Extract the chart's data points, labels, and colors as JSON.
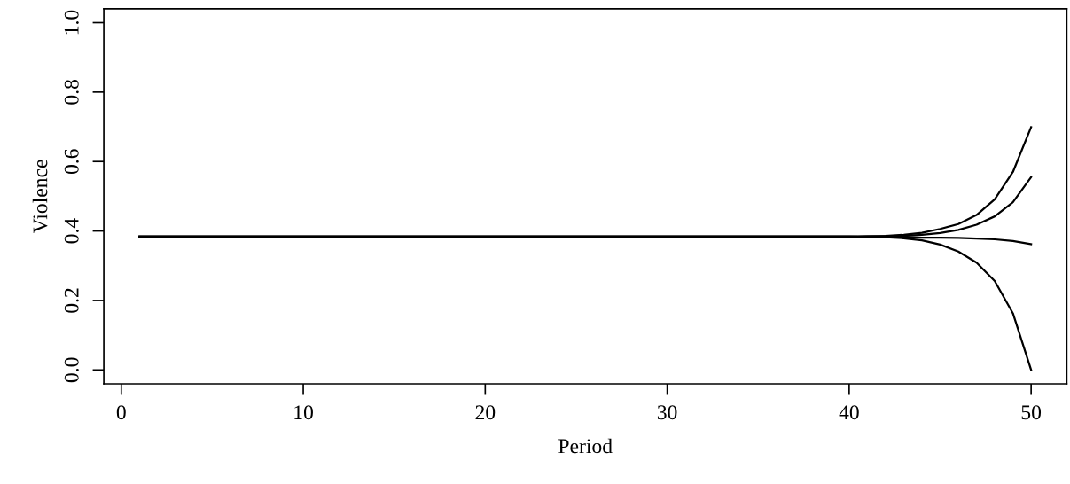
{
  "chart_data": {
    "type": "line",
    "xlabel": "Period",
    "ylabel": "Violence",
    "x": [
      1,
      40,
      41,
      42,
      43,
      44,
      45,
      46,
      47,
      48,
      49,
      50
    ],
    "series": [
      {
        "color": "#000000",
        "values": [
          0.384,
          0.384,
          0.385,
          0.386,
          0.389,
          0.395,
          0.406,
          0.42,
          0.446,
          0.491,
          0.57,
          0.699
        ]
      },
      {
        "color": "#000000",
        "values": [
          0.384,
          0.384,
          0.384,
          0.385,
          0.386,
          0.389,
          0.394,
          0.403,
          0.418,
          0.442,
          0.483,
          0.555
        ]
      },
      {
        "color": "#000000",
        "values": [
          0.384,
          0.384,
          0.383,
          0.383,
          0.382,
          0.381,
          0.381,
          0.38,
          0.378,
          0.376,
          0.371,
          0.362
        ]
      },
      {
        "color": "#000000",
        "values": [
          0.384,
          0.384,
          0.383,
          0.382,
          0.379,
          0.373,
          0.361,
          0.341,
          0.309,
          0.256,
          0.163,
          0.0
        ]
      }
    ],
    "xlim": [
      -0.96,
      51.96
    ],
    "ylim": [
      -0.04,
      1.04
    ],
    "xticks": [
      0,
      10,
      20,
      30,
      40,
      50
    ],
    "yticks": [
      {
        "value": 0,
        "label": "0.0"
      },
      0.2,
      0.4,
      0.6,
      0.8,
      {
        "value": 1,
        "label": "1.0"
      }
    ],
    "grid": false,
    "legend": false,
    "marker": "none",
    "line_style": "solid"
  }
}
